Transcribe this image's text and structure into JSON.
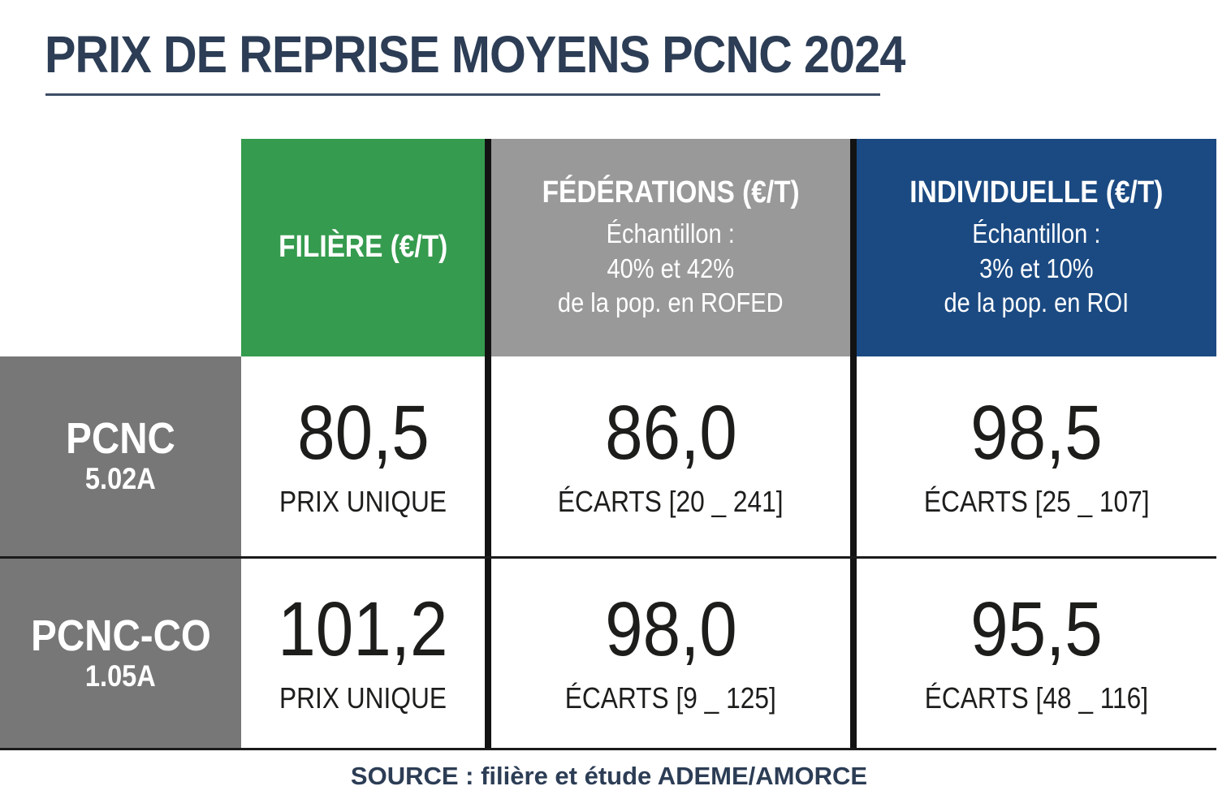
{
  "page": {
    "title": "PRIX DE REPRISE MOYENS PCNC 2024",
    "source": "SOURCE : filière et étude ADEME/AMORCE"
  },
  "colors": {
    "title_navy": "#2C3D55",
    "filiere_green": "#359B4E",
    "federations_gray": "#999999",
    "individuelle_blue": "#1B4A82",
    "row_header_gray": "#777777",
    "divider_black": "#131313",
    "value_text": "#1D1D1B"
  },
  "table": {
    "columns": [
      {
        "label": "FILIÈRE (€/T)",
        "subtitle_lines": []
      },
      {
        "label": "FÉDÉRATIONS (€/T)",
        "subtitle_lines": [
          "Échantillon :",
          "40% et 42%",
          "de la pop. en ROFED"
        ]
      },
      {
        "label": "INDIVIDUELLE (€/T)",
        "subtitle_lines": [
          "Échantillon :",
          "3% et 10%",
          "de la pop. en ROI"
        ]
      }
    ],
    "rows": [
      {
        "name": "PCNC",
        "code": "5.02A",
        "cells": [
          {
            "value": "80,5",
            "label": "PRIX UNIQUE"
          },
          {
            "value": "86,0",
            "label": "ÉCARTS [20 _ 241]"
          },
          {
            "value": "98,5",
            "label": "ÉCARTS [25 _ 107]"
          }
        ]
      },
      {
        "name": "PCNC-CO",
        "code": "1.05A",
        "cells": [
          {
            "value": "101,2",
            "label": "PRIX UNIQUE"
          },
          {
            "value": "98,0",
            "label": "ÉCARTS [9 _ 125]"
          },
          {
            "value": "95,5",
            "label": "ÉCARTS [48 _ 116]"
          }
        ]
      }
    ]
  },
  "chart_data": {
    "type": "table",
    "title": "PRIX DE REPRISE MOYENS PCNC 2024",
    "unit": "€/T",
    "columns": [
      "FILIÈRE (€/T)",
      "FÉDÉRATIONS (€/T)",
      "INDIVIDUELLE (€/T)"
    ],
    "column_notes": [
      "",
      "Échantillon : 40% et 42% de la pop. en ROFED",
      "Échantillon : 3% et 10% de la pop. en ROI"
    ],
    "rows": [
      {
        "label": "PCNC 5.02A",
        "filiere": 80.5,
        "filiere_note": "PRIX UNIQUE",
        "federations": 86.0,
        "federations_ecarts": [
          20,
          241
        ],
        "individuelle": 98.5,
        "individuelle_ecarts": [
          25,
          107
        ]
      },
      {
        "label": "PCNC-CO 1.05A",
        "filiere": 101.2,
        "filiere_note": "PRIX UNIQUE",
        "federations": 98.0,
        "federations_ecarts": [
          9,
          125
        ],
        "individuelle": 95.5,
        "individuelle_ecarts": [
          48,
          116
        ]
      }
    ],
    "source": "SOURCE : filière et étude ADEME/AMORCE"
  }
}
